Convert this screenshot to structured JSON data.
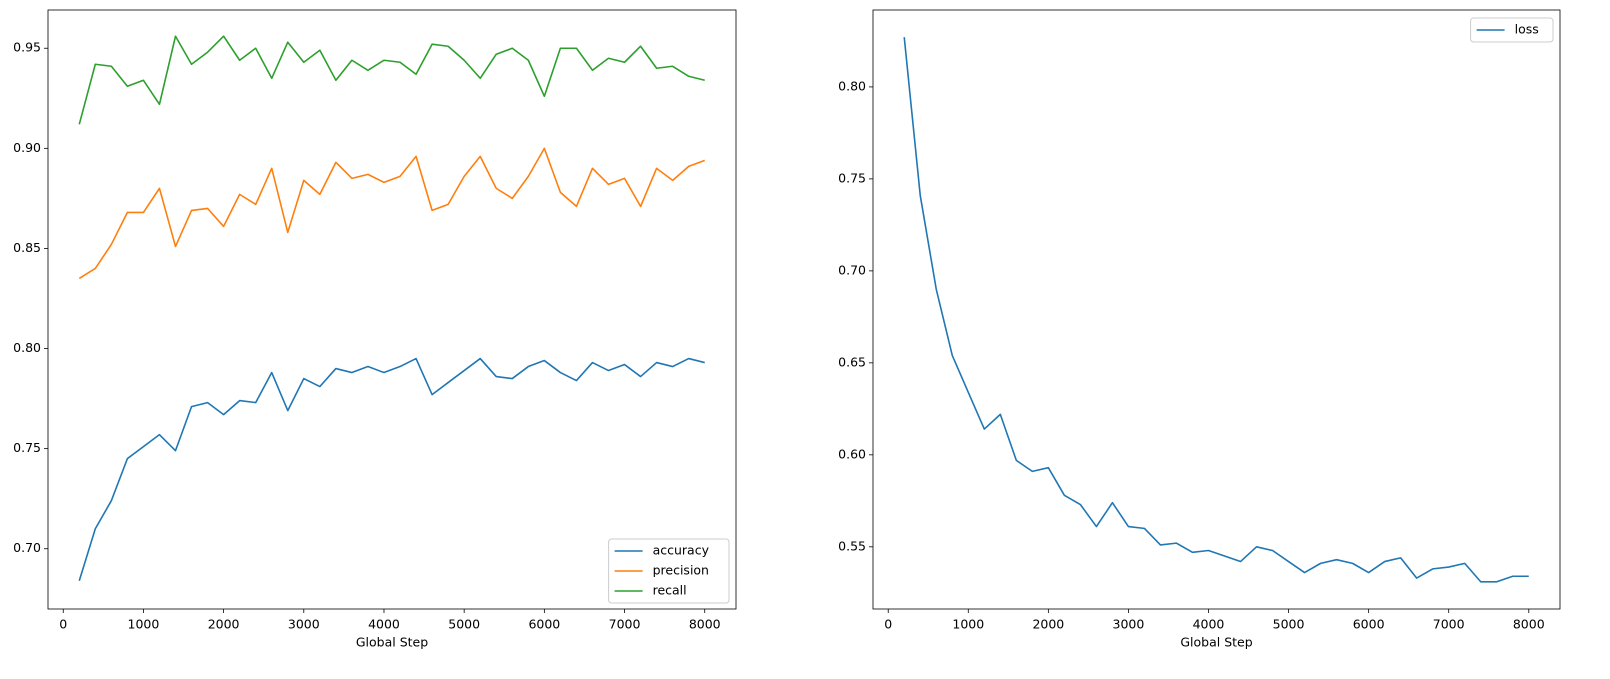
{
  "chart_data": [
    {
      "type": "line",
      "xlabel": "Global Step",
      "x": [
        200,
        400,
        600,
        800,
        1000,
        1200,
        1400,
        1600,
        1800,
        2000,
        2200,
        2400,
        2600,
        2800,
        3000,
        3200,
        3400,
        3600,
        3800,
        4000,
        4200,
        4400,
        4600,
        4800,
        5000,
        5200,
        5400,
        5600,
        5800,
        6000,
        6200,
        6400,
        6600,
        6800,
        7000,
        7200,
        7400,
        7600,
        7800,
        8000
      ],
      "series": [
        {
          "name": "accuracy",
          "color": "#1f77b4",
          "values": [
            0.684,
            0.71,
            0.724,
            0.745,
            0.751,
            0.757,
            0.749,
            0.771,
            0.773,
            0.767,
            0.774,
            0.773,
            0.788,
            0.769,
            0.785,
            0.781,
            0.79,
            0.788,
            0.791,
            0.788,
            0.791,
            0.795,
            0.777,
            0.783,
            0.789,
            0.795,
            0.786,
            0.785,
            0.791,
            0.794,
            0.788,
            0.784,
            0.793,
            0.789,
            0.792,
            0.786,
            0.793,
            0.791,
            0.795,
            0.793
          ]
        },
        {
          "name": "precision",
          "color": "#ff7f0e",
          "values": [
            0.835,
            0.84,
            0.852,
            0.868,
            0.868,
            0.88,
            0.851,
            0.869,
            0.87,
            0.861,
            0.877,
            0.872,
            0.89,
            0.858,
            0.884,
            0.877,
            0.893,
            0.885,
            0.887,
            0.883,
            0.886,
            0.896,
            0.869,
            0.872,
            0.886,
            0.896,
            0.88,
            0.875,
            0.886,
            0.9,
            0.878,
            0.871,
            0.89,
            0.882,
            0.885,
            0.871,
            0.89,
            0.884,
            0.891,
            0.894
          ]
        },
        {
          "name": "recall",
          "color": "#2ca02c",
          "values": [
            0.912,
            0.942,
            0.941,
            0.931,
            0.934,
            0.922,
            0.956,
            0.942,
            0.948,
            0.956,
            0.944,
            0.95,
            0.935,
            0.953,
            0.943,
            0.949,
            0.934,
            0.944,
            0.939,
            0.944,
            0.943,
            0.937,
            0.952,
            0.951,
            0.944,
            0.935,
            0.947,
            0.95,
            0.944,
            0.926,
            0.95,
            0.95,
            0.939,
            0.945,
            0.943,
            0.951,
            0.94,
            0.941,
            0.936,
            0.934
          ]
        }
      ],
      "xlim": [
        -190,
        8390
      ],
      "xticks": [
        0,
        1000,
        2000,
        3000,
        4000,
        5000,
        6000,
        7000,
        8000
      ],
      "ylim": [
        0.6699,
        0.9691
      ],
      "yticks": [
        {
          "value": 0.7,
          "label": "0.70"
        },
        0.75,
        {
          "value": 0.8,
          "label": "0.80"
        },
        0.85,
        {
          "value": 0.9,
          "label": "0.90"
        },
        0.95
      ],
      "legend": "lower right"
    },
    {
      "type": "line",
      "xlabel": "Global Step",
      "x": [
        200,
        400,
        600,
        800,
        1000,
        1200,
        1400,
        1600,
        1800,
        2000,
        2200,
        2400,
        2600,
        2800,
        3000,
        3200,
        3400,
        3600,
        3800,
        4000,
        4200,
        4400,
        4600,
        4800,
        5000,
        5200,
        5400,
        5600,
        5800,
        6000,
        6200,
        6400,
        6600,
        6800,
        7000,
        7200,
        7400,
        7600,
        7800,
        8000
      ],
      "series": [
        {
          "name": "loss",
          "color": "#1f77b4",
          "values": [
            0.827,
            0.741,
            0.69,
            0.654,
            0.634,
            0.614,
            0.622,
            0.597,
            0.591,
            0.593,
            0.578,
            0.573,
            0.561,
            0.574,
            0.561,
            0.56,
            0.551,
            0.552,
            0.547,
            0.548,
            0.545,
            0.542,
            0.55,
            0.548,
            0.542,
            0.536,
            0.541,
            0.543,
            0.541,
            0.536,
            0.542,
            0.544,
            0.533,
            0.538,
            0.539,
            0.541,
            0.531,
            0.531,
            0.534,
            0.534
          ]
        }
      ],
      "xlim": [
        -190,
        8390
      ],
      "xticks": [
        0,
        1000,
        2000,
        3000,
        4000,
        5000,
        6000,
        7000,
        8000
      ],
      "ylim": [
        0.5162,
        0.8418
      ],
      "yticks": [
        0.55,
        {
          "value": 0.6,
          "label": "0.60"
        },
        0.65,
        {
          "value": 0.7,
          "label": "0.70"
        },
        0.75,
        {
          "value": 0.8,
          "label": "0.80"
        }
      ],
      "legend": "upper right"
    }
  ]
}
